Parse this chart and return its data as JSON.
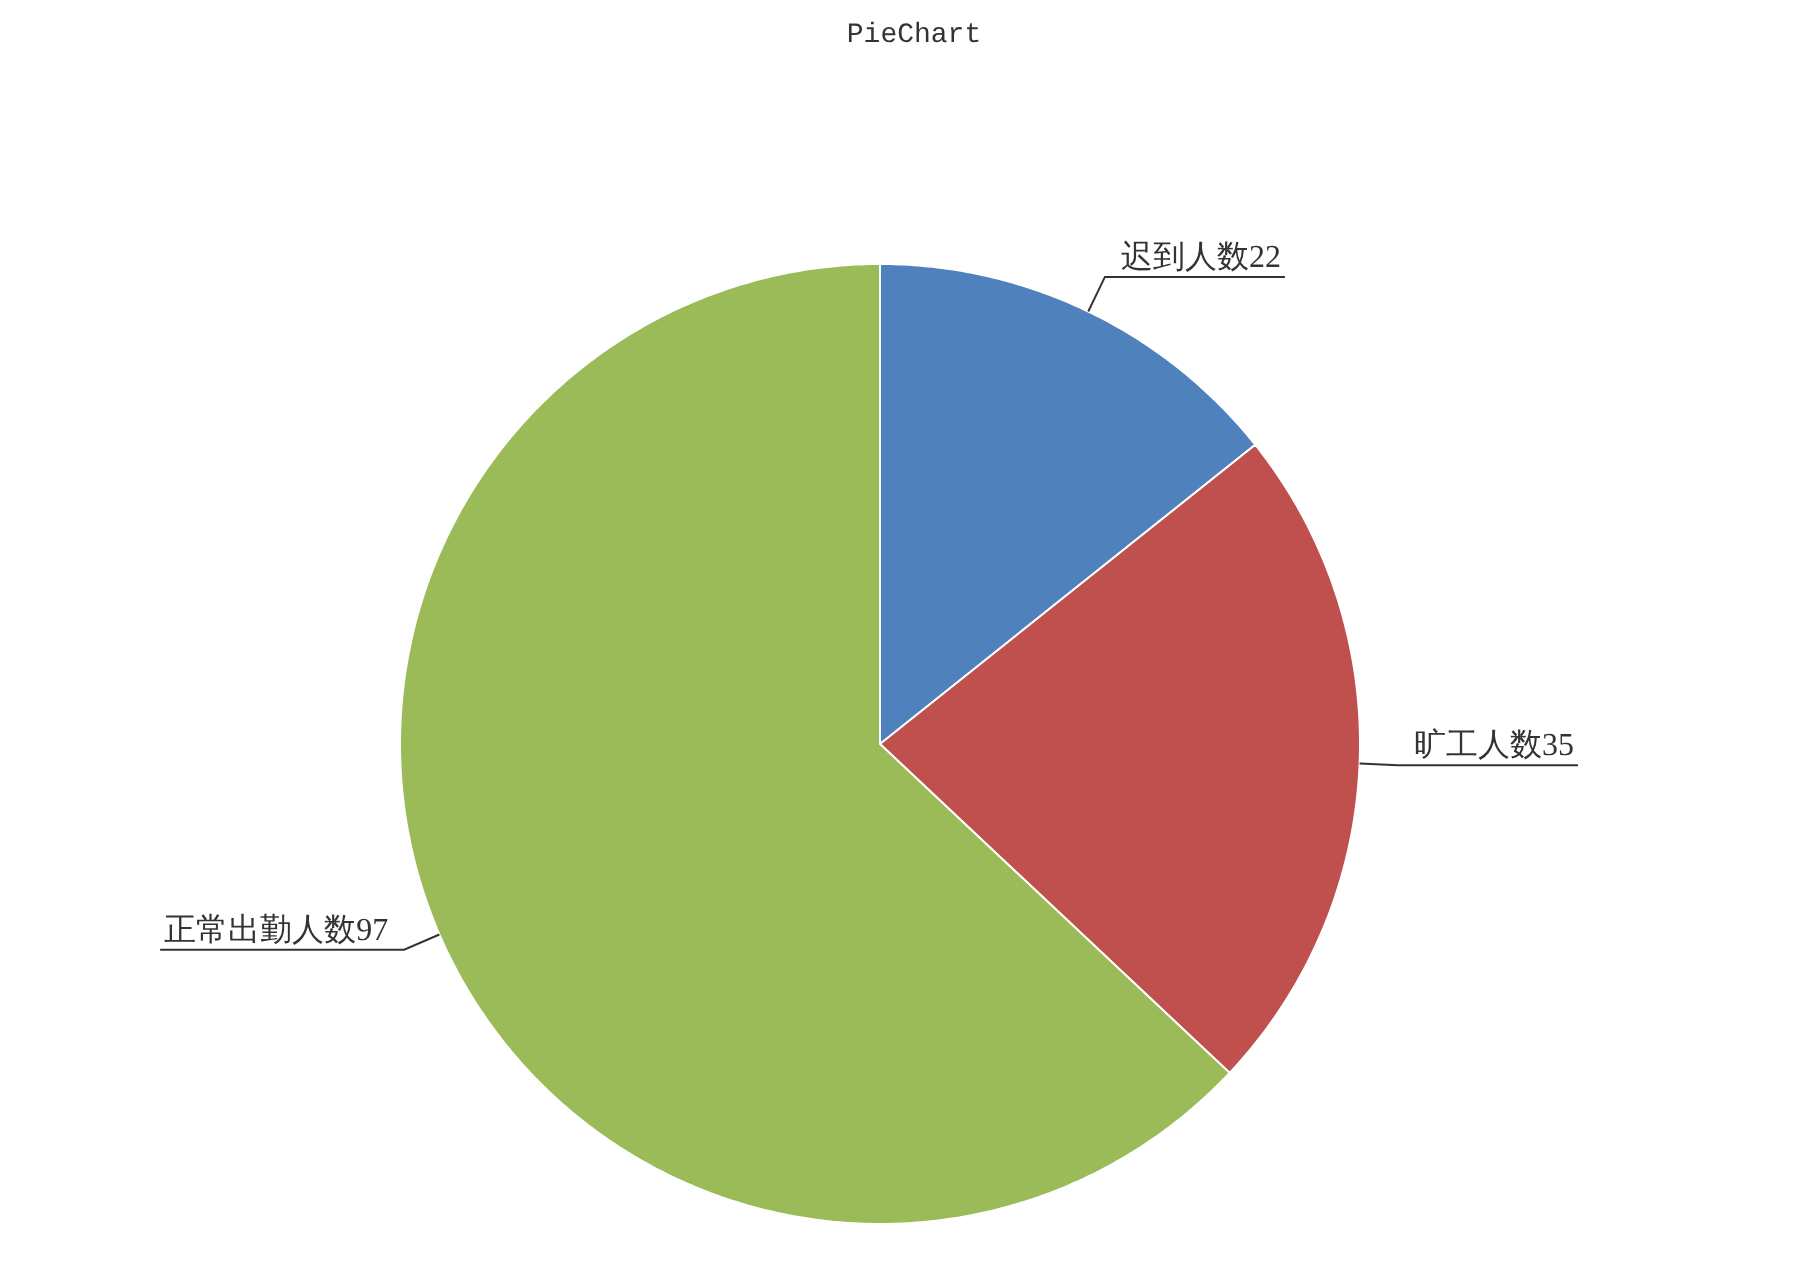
{
  "chart_data": {
    "type": "pie",
    "title": "PieChart",
    "categories": [
      "迟到人数",
      "旷工人数",
      "正常出勤人数"
    ],
    "values": [
      22,
      35,
      97
    ],
    "colors": [
      "#4f81bd",
      "#c0504d",
      "#9bbb59"
    ],
    "data_labels": true
  }
}
